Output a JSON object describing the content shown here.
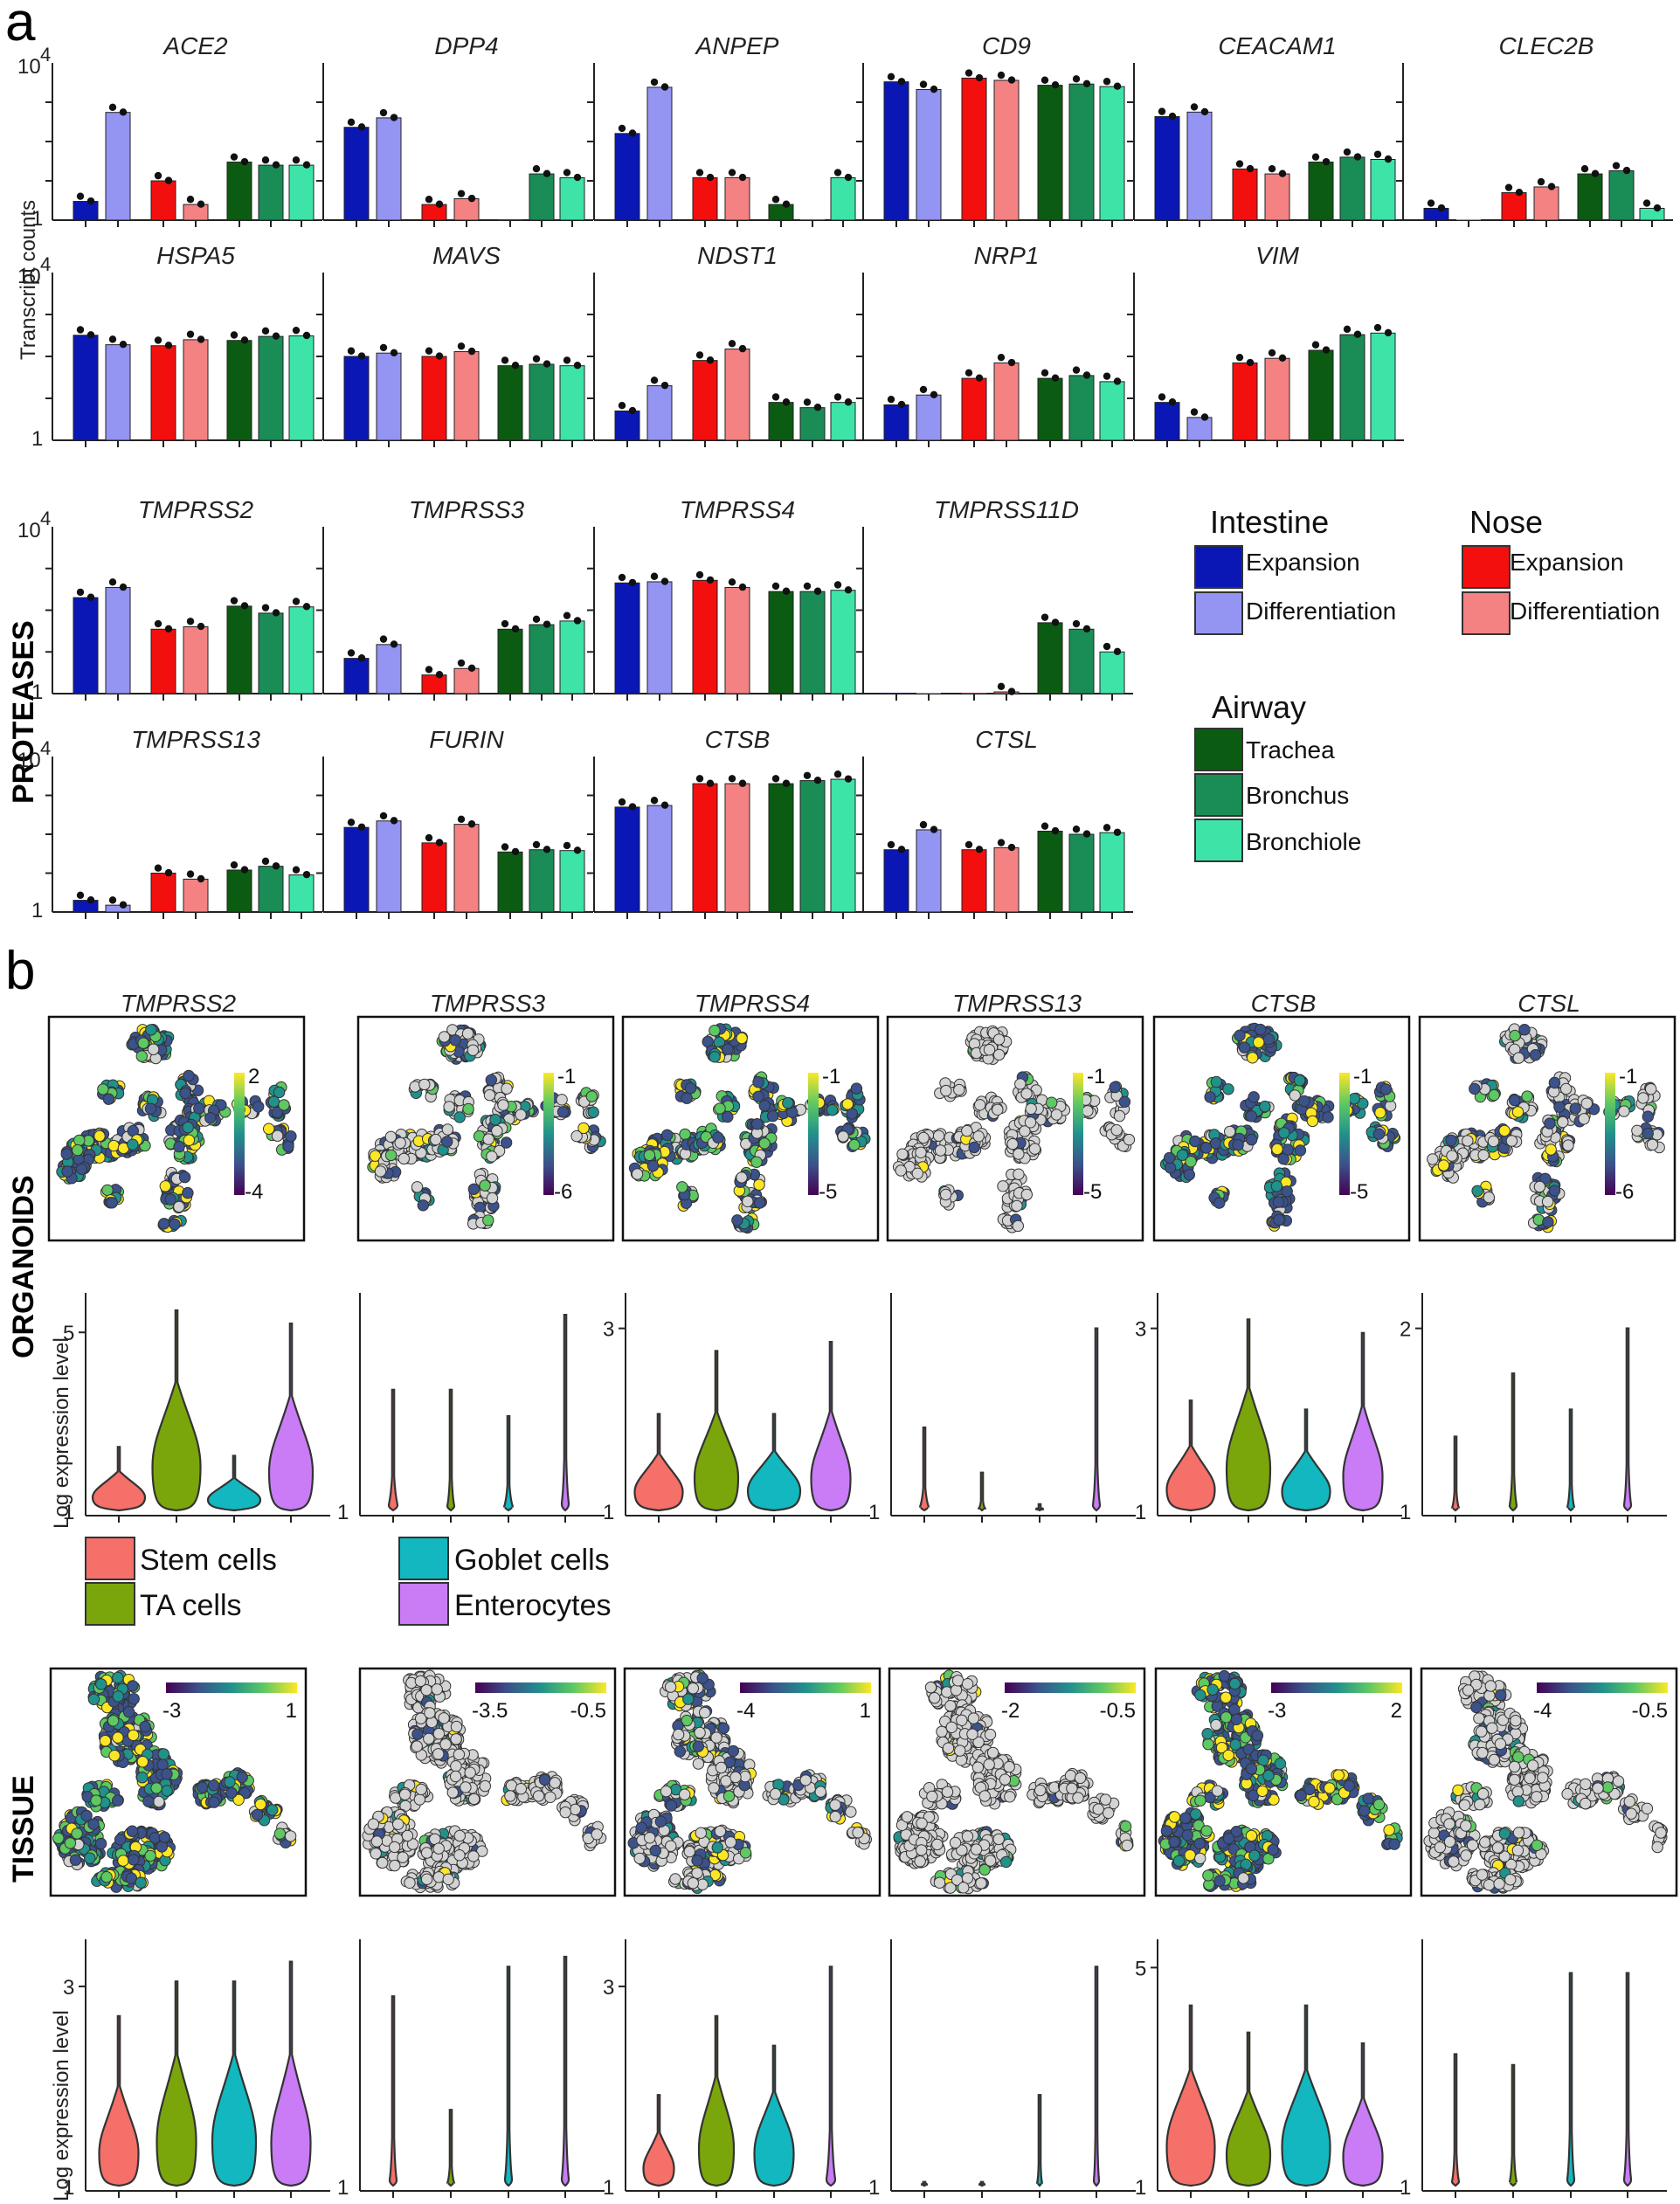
{
  "panel_labels": {
    "a": "a",
    "b": "b"
  },
  "colors": {
    "int_exp": "#0a17b4",
    "int_diff": "#9494f2",
    "nose_exp": "#f40f0f",
    "nose_diff": "#f48282",
    "trachea": "#0b5c12",
    "bronchus": "#1a8c55",
    "bronchiole": "#3ee3a8",
    "stem": "#f47068",
    "ta": "#7aa60c",
    "goblet": "#13b7bf",
    "entero": "#c97cf5",
    "null_cell": "#d3d3d3"
  },
  "section_labels": {
    "proteases": "PROTEASES",
    "organoids": "ORGANOIDS",
    "tissue": "TISSUE"
  },
  "axis_labels": {
    "transcript_counts": "Transcript counts",
    "log_expression": "Log expression level"
  },
  "legend_a": {
    "intestine_title": "Intestine",
    "nose_title": "Nose",
    "airway_title": "Airway",
    "items": {
      "int_exp": "Expansion",
      "int_diff": "Differentiation",
      "nose_exp": "Expansion",
      "nose_diff": "Differentiation",
      "trachea": "Trachea",
      "bronchus": "Bronchus",
      "bronchiole": "Bronchiole"
    }
  },
  "legend_b": {
    "stem": "Stem cells",
    "ta": "TA cells",
    "goblet": "Goblet cells",
    "entero": "Enterocytes"
  },
  "chart_data": [
    {
      "type": "bar",
      "panel": "a",
      "y_scale": "log10",
      "ylim": [
        1,
        10000
      ],
      "ytick_labels": {
        "top": "10",
        "top_exp": "4",
        "bottom": "1"
      },
      "groups": [
        "Intestine Expansion",
        "Intestine Differentiation",
        "Nose Expansion",
        "Nose Differentiation",
        "Trachea",
        "Bronchus",
        "Bronchiole"
      ],
      "genes": [
        {
          "name": "ACE2",
          "values": [
            3,
            550,
            10,
            2.5,
            30,
            25,
            25
          ]
        },
        {
          "name": "DPP4",
          "values": [
            230,
            400,
            2.5,
            3.5,
            0,
            15,
            12
          ]
        },
        {
          "name": "ANPEP",
          "values": [
            160,
            2400,
            12,
            12,
            2.5,
            0,
            12
          ]
        },
        {
          "name": "CD9",
          "values": [
            3300,
            2100,
            4100,
            3600,
            2700,
            2900,
            2500
          ]
        },
        {
          "name": "CEACAM1",
          "values": [
            430,
            560,
            20,
            15,
            30,
            40,
            35
          ]
        },
        {
          "name": "CLEC2B",
          "values": [
            2,
            0,
            5,
            7,
            15,
            18,
            2
          ]
        },
        {
          "name": "HSPA5",
          "values": [
            320,
            190,
            180,
            250,
            240,
            300,
            310
          ]
        },
        {
          "name": "MAVS",
          "values": [
            100,
            120,
            100,
            130,
            60,
            65,
            60
          ]
        },
        {
          "name": "NDST1",
          "values": [
            5,
            20,
            80,
            150,
            8,
            6,
            8
          ]
        },
        {
          "name": "NRP1",
          "values": [
            7,
            12,
            30,
            70,
            30,
            35,
            25
          ]
        },
        {
          "name": "VIM",
          "values": [
            8,
            3.5,
            70,
            90,
            140,
            330,
            360
          ]
        },
        {
          "name": "TMPRSS2",
          "values": [
            200,
            350,
            35,
            40,
            125,
            85,
            120
          ]
        },
        {
          "name": "TMPRSS3",
          "values": [
            7,
            15,
            2.8,
            4,
            35,
            45,
            55
          ]
        },
        {
          "name": "TMPRSS4",
          "values": [
            450,
            480,
            520,
            350,
            280,
            280,
            300
          ]
        },
        {
          "name": "TMPRSS11D",
          "values": [
            0,
            0,
            0,
            1.1,
            50,
            35,
            10
          ]
        },
        {
          "name": "TMPRSS13",
          "values": [
            2,
            1.5,
            10,
            7,
            12,
            15,
            9
          ]
        },
        {
          "name": "FURIN",
          "values": [
            150,
            220,
            60,
            180,
            35,
            40,
            38
          ]
        },
        {
          "name": "CTSB",
          "values": [
            500,
            550,
            2000,
            2000,
            2000,
            2400,
            2600
          ]
        },
        {
          "name": "CTSL",
          "values": [
            40,
            130,
            40,
            45,
            120,
            100,
            110
          ]
        }
      ]
    },
    {
      "type": "scatter",
      "panel": "b",
      "description": "tSNE embeddings colored by log expression (viridis scale)",
      "organoids": [
        {
          "name": "TMPRSS2",
          "cbar": [
            "2",
            "-4"
          ]
        },
        {
          "name": "TMPRSS3",
          "cbar": [
            "-1",
            "-6"
          ]
        },
        {
          "name": "TMPRSS4",
          "cbar": [
            "-1",
            "-5"
          ]
        },
        {
          "name": "TMPRSS13",
          "cbar": [
            "-1",
            "-5"
          ]
        },
        {
          "name": "CTSB",
          "cbar": [
            "-1",
            "-5"
          ]
        },
        {
          "name": "CTSL",
          "cbar": [
            "-1",
            "-6"
          ]
        }
      ],
      "tissue": [
        {
          "name": "TMPRSS2",
          "cbar": [
            "-3",
            "1"
          ]
        },
        {
          "name": "TMPRSS3",
          "cbar": [
            "-3.5",
            "-0.5"
          ]
        },
        {
          "name": "TMPRSS4",
          "cbar": [
            "-4",
            "1"
          ]
        },
        {
          "name": "TMPRSS13",
          "cbar": [
            "-2",
            "-0.5"
          ]
        },
        {
          "name": "CTSB",
          "cbar": [
            "-3",
            "2"
          ]
        },
        {
          "name": "CTSL",
          "cbar": [
            "-4",
            "-0.5"
          ]
        }
      ]
    },
    {
      "type": "violin",
      "panel": "b",
      "categories": [
        "Stem cells",
        "TA cells",
        "Goblet cells",
        "Enterocytes"
      ],
      "organoids": [
        {
          "name": "TMPRSS2",
          "ymax_label": "5",
          "ymin_label": "1",
          "ymax": 5.5,
          "tops": [
            2.4,
            5.5,
            2.2,
            5.2
          ],
          "bodies": [
            [
              0.6,
              0.75
            ],
            [
              0.55,
              0.8
            ],
            [
              0.6,
              0.7
            ],
            [
              0.5,
              0.75
            ]
          ]
        },
        {
          "name": "TMPRSS3",
          "ymax_label": "",
          "ymin_label": "1",
          "ymax": 5.5,
          "tops": [
            3.7,
            3.7,
            3.1,
            5.4
          ],
          "bodies": [
            [
              0.1,
              0.15
            ],
            [
              0.08,
              0.12
            ],
            [
              0.1,
              0.12
            ],
            [
              0.08,
              0.12
            ]
          ]
        },
        {
          "name": "TMPRSS4",
          "ymax_label": "3",
          "ymin_label": "1",
          "ymax": 3.2,
          "tops": [
            2.05,
            2.75,
            2.05,
            2.85
          ],
          "bodies": [
            [
              0.55,
              0.7
            ],
            [
              0.5,
              0.75
            ],
            [
              0.6,
              0.75
            ],
            [
              0.45,
              0.7
            ]
          ]
        },
        {
          "name": "TMPRSS13",
          "ymax_label": "",
          "ymin_label": "1",
          "ymax": 3.2,
          "tops": [
            1.9,
            1.4,
            1.05,
            3.0
          ],
          "bodies": [
            [
              0.1,
              0.13
            ],
            [
              0.08,
              0.1
            ],
            [
              0.08,
              0.12
            ],
            [
              0.08,
              0.1
            ]
          ]
        },
        {
          "name": "CTSB",
          "ymax_label": "3",
          "ymin_label": "1",
          "ymax": 3.2,
          "tops": [
            2.2,
            3.1,
            2.1,
            2.95
          ],
          "bodies": [
            [
              0.55,
              0.7
            ],
            [
              0.5,
              0.8
            ],
            [
              0.55,
              0.7
            ],
            [
              0.45,
              0.7
            ]
          ]
        },
        {
          "name": "CTSL",
          "ymax_label": "2",
          "ymin_label": "1",
          "ymax": 2.1,
          "tops": [
            1.4,
            1.75,
            1.55,
            2.0
          ],
          "bodies": [
            [
              0.08,
              0.1
            ],
            [
              0.08,
              0.12
            ],
            [
              0.08,
              0.1
            ],
            [
              0.08,
              0.1
            ]
          ]
        }
      ],
      "tissue": [
        {
          "name": "TMPRSS2",
          "ymax_label": "3",
          "ymin_label": "1",
          "ymax": 3.3,
          "tops": [
            2.7,
            3.05,
            3.05,
            3.25
          ],
          "bodies": [
            [
              0.45,
              0.7
            ],
            [
              0.45,
              0.8
            ],
            [
              0.5,
              0.8
            ],
            [
              0.45,
              0.7
            ]
          ]
        },
        {
          "name": "TMPRSS3",
          "ymax_label": "",
          "ymin_label": "1",
          "ymax": 3.3,
          "tops": [
            2.9,
            1.75,
            3.2,
            3.3
          ],
          "bodies": [
            [
              0.08,
              0.1
            ],
            [
              0.08,
              0.1
            ],
            [
              0.08,
              0.1
            ],
            [
              0.08,
              0.1
            ]
          ]
        },
        {
          "name": "TMPRSS4",
          "ymax_label": "3",
          "ymin_label": "1",
          "ymax": 3.3,
          "tops": [
            1.9,
            2.7,
            2.4,
            3.2
          ],
          "bodies": [
            [
              0.35,
              0.7
            ],
            [
              0.4,
              0.8
            ],
            [
              0.45,
              0.85
            ],
            [
              0.1,
              0.1
            ]
          ]
        },
        {
          "name": "TMPRSS13",
          "ymax_label": "",
          "ymin_label": "1",
          "ymax": 3.3,
          "tops": [
            1.02,
            1.02,
            1.9,
            3.2
          ],
          "bodies": [
            [
              0.06,
              0.08
            ],
            [
              0.06,
              0.08
            ],
            [
              0.06,
              0.08
            ],
            [
              0.06,
              0.08
            ]
          ]
        },
        {
          "name": "CTSB",
          "ymax_label": "5",
          "ymin_label": "1",
          "ymax": 5.2,
          "tops": [
            4.3,
            3.8,
            4.3,
            3.6
          ],
          "bodies": [
            [
              0.55,
              0.8
            ],
            [
              0.5,
              0.75
            ],
            [
              0.55,
              0.8
            ],
            [
              0.45,
              0.75
            ]
          ]
        },
        {
          "name": "CTSL",
          "ymax_label": "",
          "ymin_label": "1",
          "ymax": 5.2,
          "tops": [
            3.4,
            3.2,
            4.9,
            4.9
          ],
          "bodies": [
            [
              0.08,
              0.1
            ],
            [
              0.08,
              0.1
            ],
            [
              0.08,
              0.1
            ],
            [
              0.08,
              0.1
            ]
          ]
        }
      ]
    }
  ]
}
